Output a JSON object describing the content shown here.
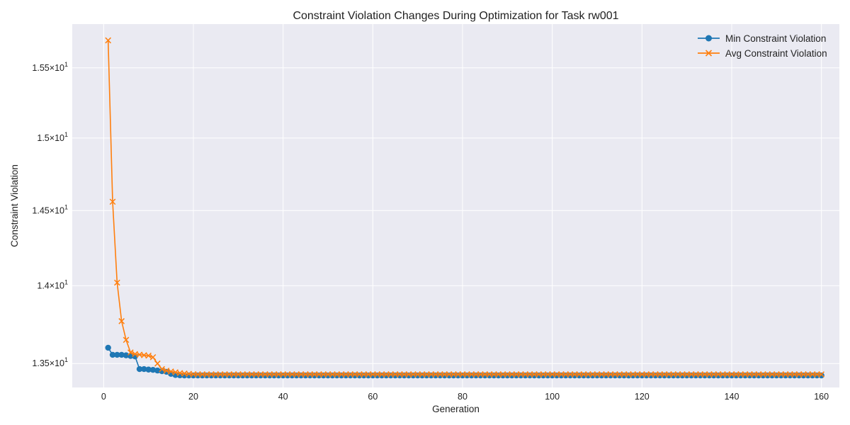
{
  "chart_data": {
    "type": "line",
    "title": "Constraint Violation Changes During Optimization for Task rw001",
    "xlabel": "Generation",
    "ylabel": "Constraint Violation",
    "yscale": "log",
    "xlim": [
      -7,
      164
    ],
    "ylim": [
      13.35,
      15.82
    ],
    "grid": true,
    "legend_position": "top-right",
    "x_ticks": [
      0,
      20,
      40,
      60,
      80,
      100,
      120,
      140,
      160
    ],
    "x_tick_labels": [
      "0",
      "20",
      "40",
      "60",
      "80",
      "100",
      "120",
      "140",
      "160"
    ],
    "y_ticks": [
      13.5,
      14.0,
      14.5,
      15.0,
      15.5
    ],
    "y_tick_labels": [
      {
        "mantissa": "1.35",
        "power": "1"
      },
      {
        "mantissa": "1.4",
        "power": "1"
      },
      {
        "mantissa": "1.45",
        "power": "1"
      },
      {
        "mantissa": "1.5",
        "power": "1"
      },
      {
        "mantissa": "1.55",
        "power": "1"
      }
    ],
    "x_start": 1,
    "x_end": 160,
    "series": [
      {
        "name": "Min Constraint Violation",
        "color": "#1f77b4",
        "marker": "circle",
        "values": [
          13.6,
          13.555,
          13.555,
          13.555,
          13.552,
          13.548,
          13.545,
          13.465,
          13.465,
          13.462,
          13.46,
          13.456,
          13.452,
          13.448,
          13.435,
          13.428,
          13.426,
          13.425,
          13.425,
          13.425
        ],
        "final_value": 13.425
      },
      {
        "name": "Avg Constraint Violation",
        "color": "#ff7f0e",
        "marker": "x",
        "values": [
          15.7,
          14.56,
          14.02,
          13.77,
          13.65,
          13.57,
          13.56,
          13.556,
          13.553,
          13.55,
          13.54,
          13.5,
          13.465,
          13.455,
          13.45,
          13.445,
          13.44,
          13.437,
          13.435,
          13.433
        ],
        "final_value": 13.432
      }
    ]
  }
}
